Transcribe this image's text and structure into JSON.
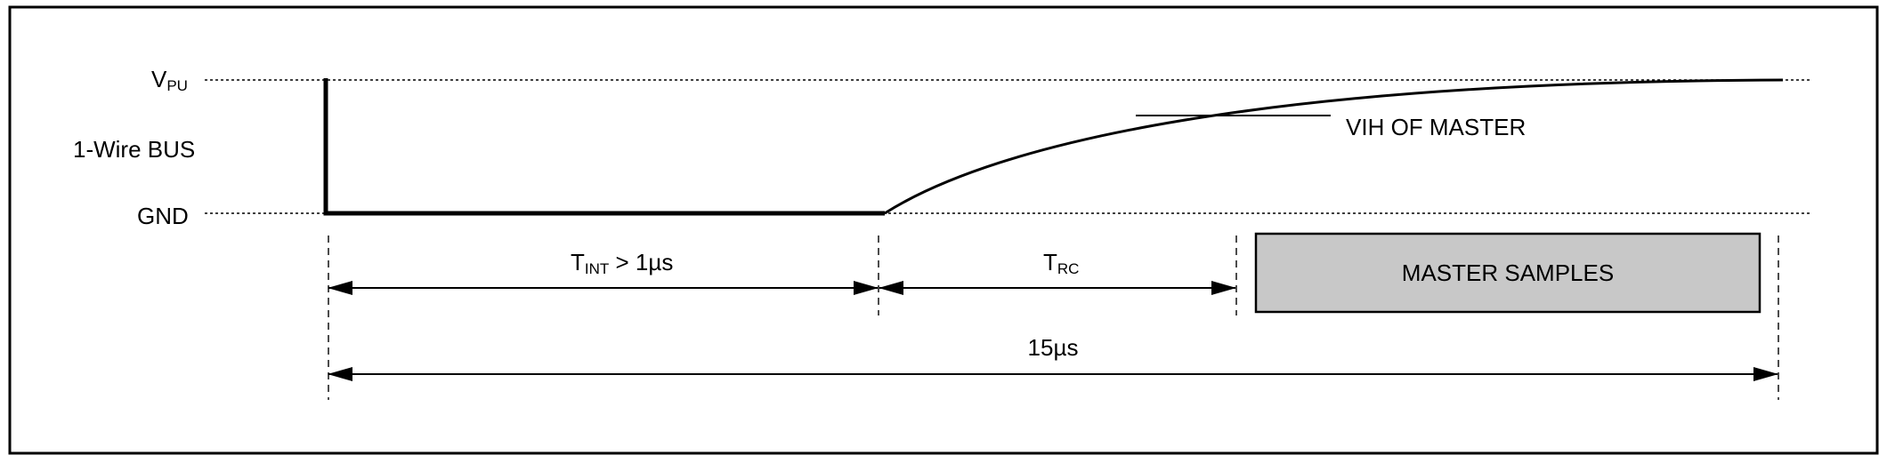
{
  "labels": {
    "vpu_main": "V",
    "vpu_sub": "PU",
    "bus": "1-Wire BUS",
    "gnd": "GND",
    "vih": "VIH OF MASTER",
    "tint_main": "T",
    "tint_sub": "INT",
    "tint_rest": " > 1µs",
    "trc_main": "T",
    "trc_sub": "RC",
    "master_samples": "MASTER SAMPLES",
    "total": "15µs"
  },
  "colors": {
    "line": "#000000",
    "guide": "#555555",
    "samples_fill": "#c8c8c8",
    "background": "#ffffff"
  }
}
